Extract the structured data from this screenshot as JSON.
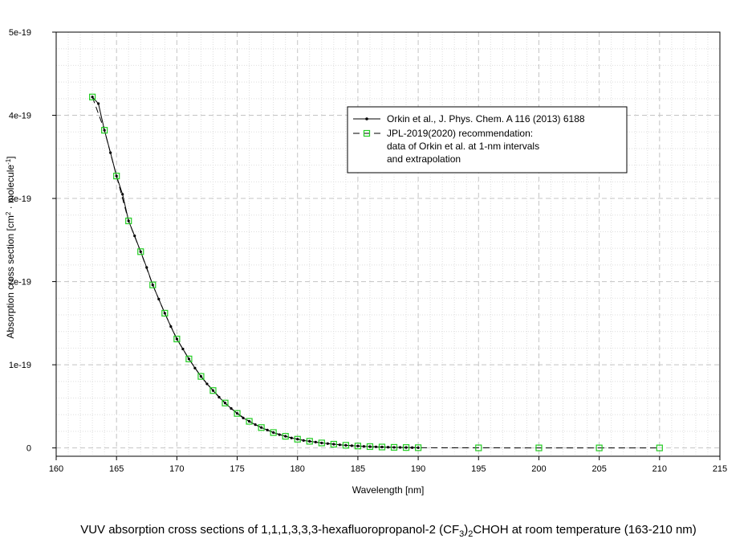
{
  "chart_data": {
    "type": "line",
    "xlabel": "Wavelength [nm]",
    "ylabel": {
      "prefix": "Absorption cross section [cm",
      "sup1": "2",
      "mid": " · molecule",
      "sup2": "-1",
      "suffix": "]"
    },
    "xlim": [
      160,
      215
    ],
    "ylim": [
      -1e-20,
      5e-19
    ],
    "x_ticks": [
      160,
      165,
      170,
      175,
      180,
      185,
      190,
      195,
      200,
      205,
      210,
      215
    ],
    "x_tick_labels": [
      "160",
      "165",
      "170",
      "175",
      "180",
      "185",
      "190",
      "195",
      "200",
      "205",
      "210",
      "215"
    ],
    "y_ticks": [
      0,
      1e-19,
      2e-19,
      3e-19,
      4e-19,
      5e-19
    ],
    "y_tick_labels": [
      "0",
      "1e-19",
      "2e-19",
      "3e-19",
      "4e-19",
      "5e-19"
    ],
    "grid": true,
    "legend_position": "top-right",
    "series": [
      {
        "name": "Orkin et al., J. Phys. Chem. A 116 (2013) 6188",
        "line_style": "solid",
        "marker": "dot",
        "color": "#000000",
        "x": [
          163.0,
          163.5,
          164.0,
          164.5,
          165.0,
          165.5,
          166.0,
          166.5,
          167.0,
          167.5,
          168.0,
          168.5,
          169.0,
          169.5,
          170.0,
          170.5,
          171.0,
          171.5,
          172.0,
          172.5,
          173.0,
          173.5,
          174.0,
          174.5,
          175.0,
          175.5,
          176.0,
          176.5,
          177.0,
          177.5,
          178.0,
          178.5,
          179.0,
          179.5,
          180.0,
          180.5,
          181.0,
          181.5,
          182.0,
          182.5,
          183.0,
          183.5,
          184.0,
          184.5,
          185.0,
          185.5,
          186.0,
          186.5,
          187.0,
          187.5,
          188.0,
          188.5,
          189.0,
          189.5,
          190.0
        ],
        "y": [
          4.22e-19,
          4.14e-19,
          3.82e-19,
          3.55e-19,
          3.27e-19,
          3.05e-19,
          2.73e-19,
          2.55e-19,
          2.36e-19,
          2.17e-19,
          1.96e-19,
          1.79e-19,
          1.62e-19,
          1.46e-19,
          1.31e-19,
          1.19e-19,
          1.07e-19,
          9.6e-20,
          8.6e-20,
          7.7e-20,
          6.9e-20,
          6.1e-20,
          5.4e-20,
          4.75e-20,
          4.15e-20,
          3.6e-20,
          3.2e-20,
          2.8e-20,
          2.45e-20,
          2.15e-20,
          1.85e-20,
          1.6e-20,
          1.4e-20,
          1.2e-20,
          1.05e-20,
          9e-21,
          8e-21,
          7e-21,
          6e-21,
          5.2e-21,
          4.5e-21,
          3.8e-21,
          3.2e-21,
          2.7e-21,
          2.3e-21,
          1.9e-21,
          1.6e-21,
          1.3e-21,
          1.1e-21,
          9e-22,
          7e-22,
          6e-22,
          5e-22,
          4e-22,
          3e-22
        ]
      },
      {
        "name": "JPL-2019(2020) recommendation:",
        "name_lines": [
          "JPL-2019(2020) recommendation:",
          "data of Orkin et al. at 1-nm intervals",
          "and extrapolation"
        ],
        "line_style": "dashed",
        "marker": "open-square",
        "color": "#22cc22",
        "x": [
          163,
          164,
          165,
          166,
          167,
          168,
          169,
          170,
          171,
          172,
          173,
          174,
          175,
          176,
          177,
          178,
          179,
          180,
          181,
          182,
          183,
          184,
          185,
          186,
          187,
          188,
          189,
          190,
          195,
          200,
          205,
          210
        ],
        "y": [
          4.22e-19,
          3.82e-19,
          3.27e-19,
          2.73e-19,
          2.36e-19,
          1.96e-19,
          1.62e-19,
          1.31e-19,
          1.07e-19,
          8.6e-20,
          6.9e-20,
          5.4e-20,
          4.15e-20,
          3.2e-20,
          2.45e-20,
          1.85e-20,
          1.4e-20,
          1.05e-20,
          8e-21,
          6e-21,
          4.5e-21,
          3.2e-21,
          2.3e-21,
          1.6e-21,
          1.1e-21,
          7e-22,
          5e-22,
          3e-22,
          1e-22,
          5e-23,
          2e-23,
          1e-23
        ]
      }
    ],
    "caption": {
      "before": "VUV absorption cross sections of 1,1,1,3,3,3-hexafluoropropanol-2 (CF",
      "sub": "3",
      "after": ")",
      "sub2": "2",
      "tail": "CHOH at room temperature (163-210 nm)"
    }
  }
}
